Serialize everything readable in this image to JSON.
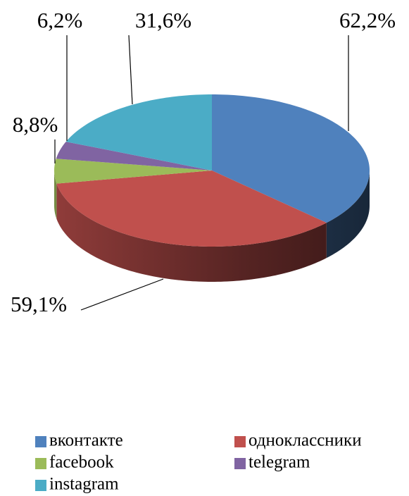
{
  "chart_data": {
    "type": "pie3d",
    "categories": [
      "вконтакте",
      "одноклассники",
      "facebook",
      "telegram",
      "instagram"
    ],
    "values": [
      62.2,
      59.1,
      8.8,
      6.2,
      31.6
    ],
    "value_labels": [
      "62,2%",
      "59,1%",
      "8,8%",
      "6,2%",
      "31,6%"
    ],
    "colors": [
      "#4f81bd",
      "#c0504d",
      "#9bbb59",
      "#8064a2",
      "#4bacc6"
    ],
    "legend": "bottom"
  }
}
